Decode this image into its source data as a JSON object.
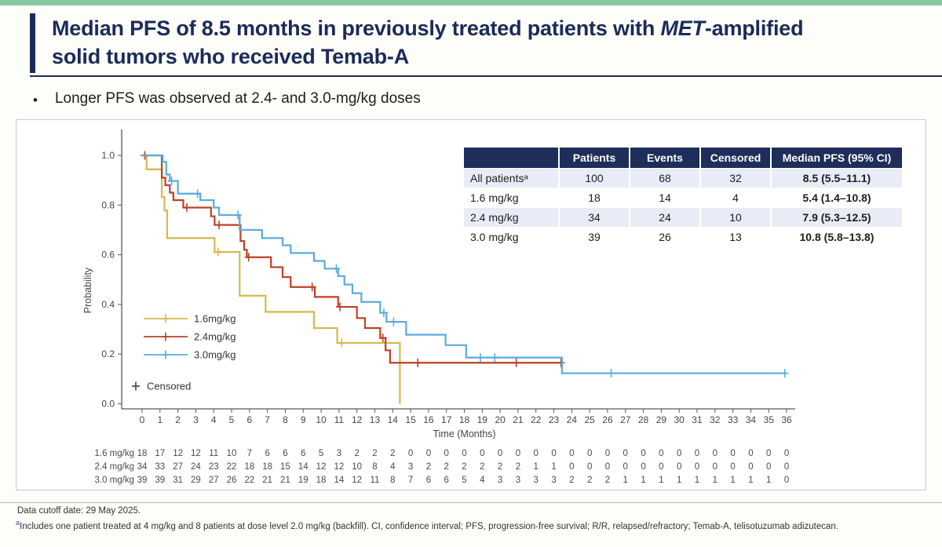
{
  "slide": {
    "title_p1": "Median PFS of 8.5 months in previously treated patients with ",
    "title_italic": "MET",
    "title_p2": "-amplified",
    "title_line2": "solid tumors who received Temab-A",
    "bullet_glyph": "•",
    "bullet": "Longer PFS was observed at 2.4- and 3.0-mg/kg doses"
  },
  "stats_table": {
    "headers": [
      "",
      "Patients",
      "Events",
      "Censored",
      "Median PFS (95% CI)"
    ],
    "rows": [
      {
        "label": "All patientsᵃ",
        "patients": "100",
        "events": "68",
        "censored": "32",
        "median": "8.5 (5.5–11.1)"
      },
      {
        "label": "1.6 mg/kg",
        "patients": "18",
        "events": "14",
        "censored": "4",
        "median": "5.4 (1.4–10.8)"
      },
      {
        "label": "2.4 mg/kg",
        "patients": "34",
        "events": "24",
        "censored": "10",
        "median": "7.9 (5.3–12.5)"
      },
      {
        "label": "3.0 mg/kg",
        "patients": "39",
        "events": "26",
        "censored": "13",
        "median": "10.8 (5.8–13.8)"
      }
    ]
  },
  "chart_data": {
    "type": "line",
    "subtype": "kaplan-meier-step",
    "title": "",
    "xlabel": "Time (Months)",
    "ylabel": "Probability",
    "xlim": [
      0,
      36
    ],
    "ylim": [
      0.0,
      1.0
    ],
    "xticks": [
      0,
      1,
      2,
      3,
      4,
      5,
      6,
      7,
      8,
      9,
      10,
      11,
      12,
      13,
      14,
      15,
      16,
      17,
      18,
      19,
      20,
      21,
      22,
      23,
      24,
      25,
      26,
      27,
      28,
      29,
      30,
      31,
      32,
      33,
      34,
      35,
      36
    ],
    "yticks": [
      0.0,
      0.2,
      0.4,
      0.6,
      0.8,
      1.0
    ],
    "grid": false,
    "legend_position": "inside-lower-left",
    "censored_label": "Censored",
    "censored_color": "#33415e",
    "series": [
      {
        "name": "1.6mg/kg",
        "color": "#d8b74b",
        "steps": [
          [
            0,
            1.0
          ],
          [
            0.25,
            0.944
          ],
          [
            1.1,
            0.833
          ],
          [
            1.25,
            0.778
          ],
          [
            1.4,
            0.667
          ],
          [
            4.05,
            0.611
          ],
          [
            5.45,
            0.435
          ],
          [
            6.9,
            0.37
          ],
          [
            9.6,
            0.305
          ],
          [
            10.9,
            0.245
          ],
          [
            14.4,
            0.0
          ]
        ],
        "end": 14.4,
        "censors": [
          [
            4.25,
            0.611
          ],
          [
            11.15,
            0.245
          ]
        ]
      },
      {
        "name": "2.4mg/kg",
        "color": "#bd4124",
        "steps": [
          [
            0,
            1.0
          ],
          [
            1.1,
            0.91
          ],
          [
            1.3,
            0.88
          ],
          [
            1.55,
            0.85
          ],
          [
            1.75,
            0.82
          ],
          [
            2.3,
            0.79
          ],
          [
            3.85,
            0.755
          ],
          [
            4.05,
            0.72
          ],
          [
            5.5,
            0.655
          ],
          [
            5.7,
            0.62
          ],
          [
            5.85,
            0.59
          ],
          [
            7.2,
            0.55
          ],
          [
            7.85,
            0.51
          ],
          [
            8.3,
            0.47
          ],
          [
            9.65,
            0.43
          ],
          [
            10.95,
            0.39
          ],
          [
            12.0,
            0.345
          ],
          [
            12.45,
            0.305
          ],
          [
            13.3,
            0.265
          ],
          [
            13.6,
            0.215
          ],
          [
            13.85,
            0.165
          ]
        ],
        "end": 23.45,
        "censors": [
          [
            0.15,
            1.0
          ],
          [
            2.5,
            0.79
          ],
          [
            4.3,
            0.72
          ],
          [
            5.95,
            0.59
          ],
          [
            9.5,
            0.47
          ],
          [
            11.05,
            0.39
          ],
          [
            13.45,
            0.265
          ],
          [
            15.4,
            0.165
          ],
          [
            20.9,
            0.165
          ],
          [
            23.4,
            0.165
          ]
        ]
      },
      {
        "name": "3.0mg/kg",
        "color": "#58abdd",
        "steps": [
          [
            0,
            1.0
          ],
          [
            1.15,
            0.974
          ],
          [
            1.35,
            0.923
          ],
          [
            1.55,
            0.897
          ],
          [
            2.0,
            0.846
          ],
          [
            3.25,
            0.82
          ],
          [
            4.0,
            0.79
          ],
          [
            4.3,
            0.76
          ],
          [
            5.45,
            0.7
          ],
          [
            6.7,
            0.667
          ],
          [
            7.85,
            0.638
          ],
          [
            8.3,
            0.607
          ],
          [
            9.6,
            0.575
          ],
          [
            10.2,
            0.544
          ],
          [
            10.95,
            0.514
          ],
          [
            11.3,
            0.48
          ],
          [
            11.75,
            0.445
          ],
          [
            12.25,
            0.41
          ],
          [
            13.3,
            0.366
          ],
          [
            13.65,
            0.33
          ],
          [
            14.75,
            0.278
          ],
          [
            16.95,
            0.236
          ],
          [
            18.1,
            0.186
          ],
          [
            23.45,
            0.123
          ]
        ],
        "end": 35.9,
        "censors": [
          [
            1.65,
            0.897
          ],
          [
            3.1,
            0.846
          ],
          [
            5.35,
            0.76
          ],
          [
            10.85,
            0.544
          ],
          [
            13.5,
            0.366
          ],
          [
            14.05,
            0.33
          ],
          [
            18.9,
            0.186
          ],
          [
            19.7,
            0.186
          ],
          [
            26.2,
            0.123
          ],
          [
            35.9,
            0.123
          ]
        ]
      }
    ],
    "at_risk": {
      "row_labels": [
        "1.6 mg/kg",
        "2.4 mg/kg",
        "3.0 mg/kg"
      ],
      "values": [
        [
          18,
          17,
          12,
          12,
          11,
          10,
          7,
          6,
          6,
          6,
          5,
          3,
          2,
          2,
          2,
          0,
          0,
          0,
          0,
          0,
          0,
          0,
          0,
          0,
          0,
          0,
          0,
          0,
          0,
          0,
          0,
          0,
          0,
          0,
          0,
          0,
          0
        ],
        [
          34,
          33,
          27,
          24,
          23,
          22,
          18,
          18,
          15,
          14,
          12,
          12,
          10,
          8,
          4,
          3,
          2,
          2,
          2,
          2,
          2,
          2,
          1,
          1,
          0,
          0,
          0,
          0,
          0,
          0,
          0,
          0,
          0,
          0,
          0,
          0,
          0
        ],
        [
          39,
          39,
          31,
          29,
          27,
          26,
          22,
          21,
          21,
          19,
          18,
          14,
          12,
          11,
          8,
          7,
          6,
          6,
          5,
          4,
          3,
          3,
          3,
          3,
          2,
          2,
          2,
          1,
          1,
          1,
          1,
          1,
          1,
          1,
          1,
          1,
          0
        ]
      ]
    }
  },
  "footer": {
    "cutoff": "Data cutoff date: 29 May 2025.",
    "footnote_marker": "a",
    "footnote": "Includes one patient treated at 4 mg/kg and 8 patients at dose level 2.0 mg/kg (backfill). CI, confidence interval; PFS, progression-free survival; R/R, relapsed/refractory; Temab-A, telisotuzumab adizutecan."
  },
  "colors": {
    "top_strip": "#87c7a2",
    "navy": "#1b2b59",
    "table_header": "#1f2d5a",
    "table_alt_row": "#e9ecf6",
    "axis": "#57585a"
  }
}
